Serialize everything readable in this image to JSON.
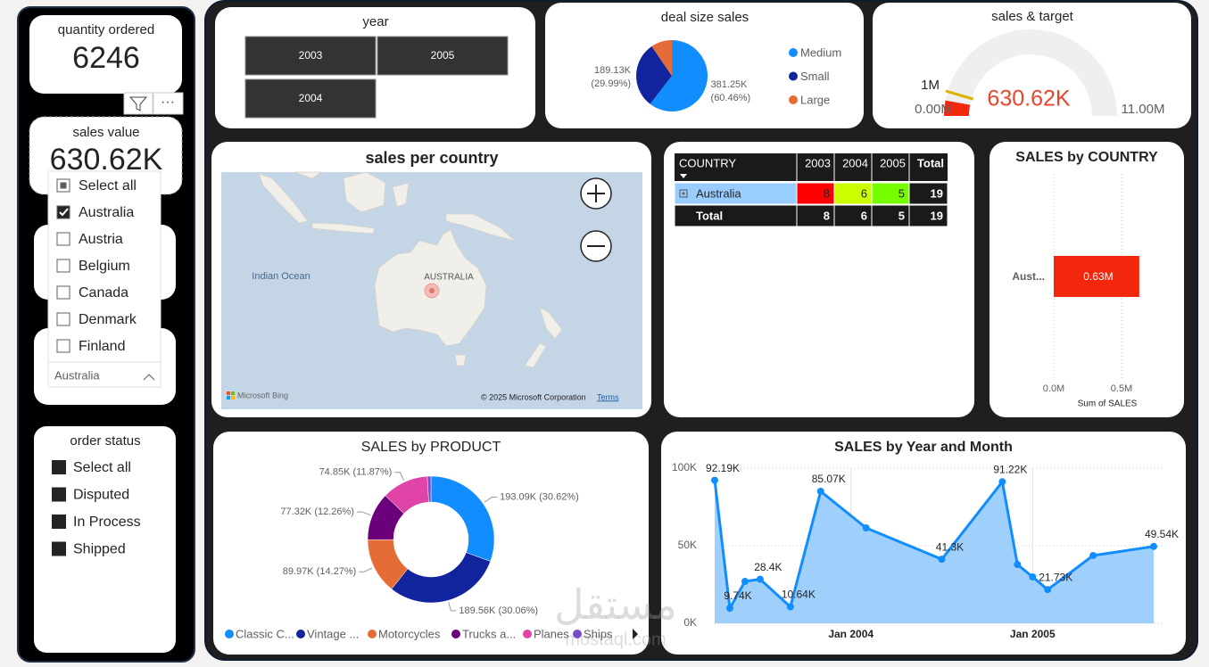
{
  "cards": [
    {
      "label": "quantity ordered",
      "value": "6246"
    },
    {
      "label": "sales value",
      "value": "630.62K"
    }
  ],
  "country_slicer": {
    "items": [
      "Select all",
      "Australia",
      "Austria",
      "Belgium",
      "Canada",
      "Denmark",
      "Finland"
    ],
    "selected": "Australia"
  },
  "order_status": {
    "title": "order status",
    "items": [
      "Select all",
      "Disputed",
      "In Process",
      "Shipped"
    ]
  },
  "year_slicer": {
    "title": "year",
    "items": [
      "2003",
      "2005",
      "2004"
    ]
  },
  "map": {
    "title": "sales per country",
    "ocean": "Indian Ocean",
    "country": "AUSTRALIA",
    "attribution": "Microsoft Bing",
    "copyright": "© 2025 Microsoft Corporation",
    "terms": "Terms"
  },
  "matrix": {
    "columns": [
      "COUNTRY",
      "2003",
      "2004",
      "2005",
      "Total"
    ],
    "rows": [
      [
        "Australia",
        8,
        6,
        5,
        19
      ],
      [
        "Total",
        8,
        6,
        5,
        19
      ]
    ],
    "cell_colors": [
      "#ff0000",
      "#ccff00",
      "#77ff00"
    ]
  },
  "watermark": [
    "مستقل",
    "mostaql.com"
  ],
  "chart_data": [
    {
      "type": "pie",
      "title": "deal size sales",
      "categories": [
        "Medium",
        "Small",
        "Large"
      ],
      "values": [
        381250,
        189130,
        60240
      ],
      "value_labels": [
        "381.25K (60.46%)",
        "189.13K (29.99%)",
        null
      ],
      "colors": [
        "#118DFF",
        "#12239E",
        "#E66C37"
      ]
    },
    {
      "type": "gauge",
      "title": "sales & target",
      "value": 630620,
      "value_label": "630.62K",
      "target": 1000000,
      "target_label": "1M",
      "ylim": [
        0,
        11000000
      ],
      "yticks": [
        {
          "value": 0,
          "label": "0.00M"
        },
        {
          "value": 11000000,
          "label": "11.00M"
        }
      ],
      "color": "#f2270c",
      "target_color": "#d9b300"
    },
    {
      "type": "bar",
      "orientation": "horizontal",
      "title": "SALES by COUNTRY",
      "categories": [
        "Aust..."
      ],
      "values": [
        630620
      ],
      "value_labels": [
        "0.63M"
      ],
      "xlim": [
        0,
        800000
      ],
      "xticks": [
        {
          "value": 0,
          "label": "0.0M"
        },
        {
          "value": 500000,
          "label": "0.5M"
        }
      ],
      "xlabel": "Sum of SALES",
      "color": "#f2270c",
      "grid": true
    },
    {
      "type": "donut",
      "title": "SALES by PRODUCT",
      "categories": [
        "Classic C...",
        "Vintage ...",
        "Motorcycles",
        "Trucks a...",
        "Planes",
        "Ships"
      ],
      "values": [
        193090,
        189560,
        89970,
        77320,
        74850,
        5830
      ],
      "value_labels": [
        "193.09K (30.62%)",
        "189.56K (30.06%)",
        "89.97K (14.27%)",
        "77.32K (12.26%)",
        "74.85K (11.87%)",
        null
      ],
      "colors": [
        "#118DFF",
        "#12239E",
        "#E66C37",
        "#6B007B",
        "#E044A7",
        "#744EC2"
      ]
    },
    {
      "type": "line",
      "title": "SALES by Year and Month",
      "x": [
        "2003-04",
        "2003-05",
        "2003-06",
        "2003-07",
        "2003-09",
        "2003-11",
        "2004-02",
        "2004-07",
        "2004-11",
        "2004-12",
        "2005-01",
        "2005-02",
        "2005-05",
        "2005-09"
      ],
      "values": [
        92190,
        9740,
        27000,
        28400,
        10640,
        85070,
        61500,
        41300,
        91220,
        37900,
        29900,
        21730,
        43700,
        49540
      ],
      "value_labels": [
        "92.19K",
        "9.74K",
        null,
        "28.4K",
        "10.64K",
        "85.07K",
        null,
        "41.3K",
        "91.22K",
        null,
        null,
        "21.73K",
        null,
        "49.54K"
      ],
      "xlim": [
        "2003-04",
        "2005-09"
      ],
      "xticks": [
        {
          "value": "2004-01",
          "label": "Jan 2004"
        },
        {
          "value": "2005-01",
          "label": "Jan 2005"
        }
      ],
      "ylim": [
        0,
        100000
      ],
      "yticks": [
        {
          "value": 0,
          "label": "0K"
        },
        {
          "value": 50000,
          "label": "50K"
        },
        {
          "value": 100000,
          "label": "100K"
        }
      ],
      "color": "#118DFF",
      "area_color": "#9fd0fb",
      "grid": true
    }
  ]
}
